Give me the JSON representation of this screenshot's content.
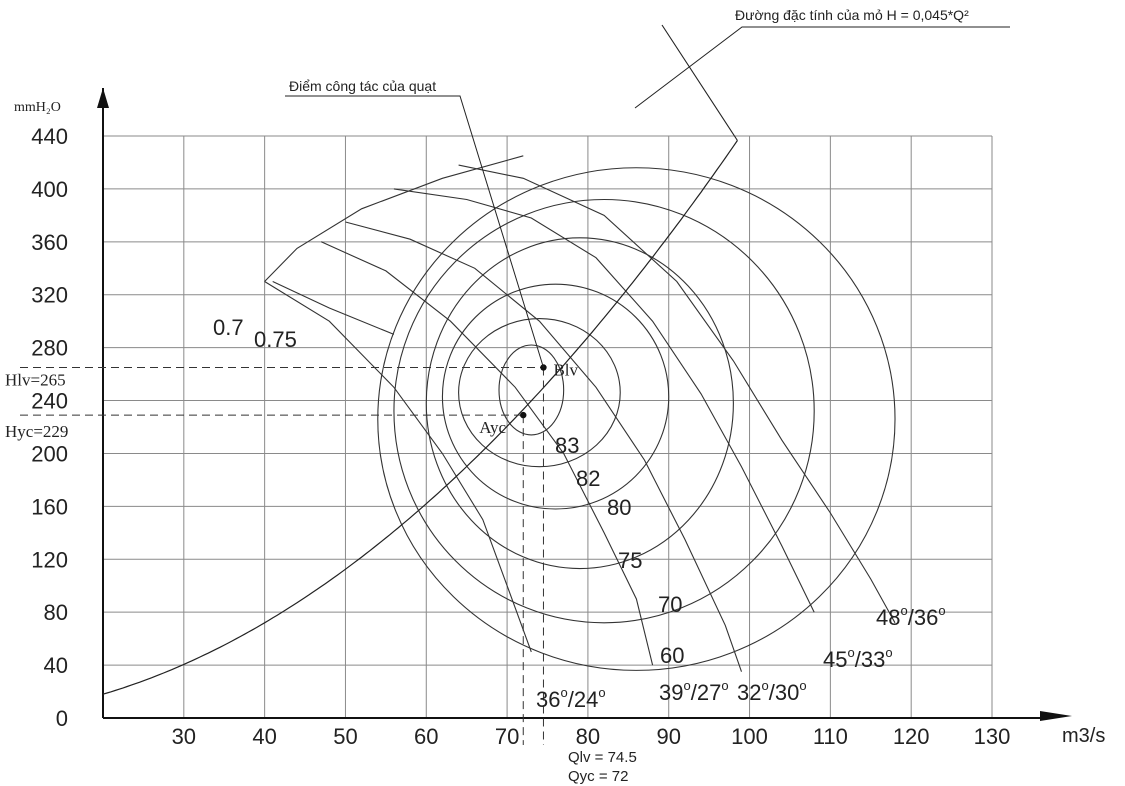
{
  "chart_data": {
    "type": "line",
    "title": "",
    "xlabel": "m3/s",
    "ylabel": "mmH₂O",
    "xlim": [
      20,
      130
    ],
    "ylim": [
      0,
      440
    ],
    "x_ticks": [
      30,
      40,
      50,
      60,
      70,
      80,
      90,
      100,
      110,
      120,
      130
    ],
    "y_ticks": [
      0,
      40,
      80,
      120,
      160,
      200,
      240,
      280,
      320,
      360,
      400,
      440
    ],
    "grid": true,
    "mine_curve": {
      "label": "Đường đặc tính của mỏ H = 0,045*Q²",
      "coefficient": 0.045
    },
    "operating_point": {
      "label": "Điểm công tác của quạt",
      "name": "Blv",
      "x": 74.5,
      "y": 265
    },
    "required_point": {
      "name": "Ayc",
      "x": 72,
      "y": 229
    },
    "axis_callouts": {
      "hlv": "Hlv=265",
      "hyc": "Hyc=229",
      "qlv": "Qlv = 74.5",
      "qyc": "Qyc = 72"
    },
    "blade_angle_curves": [
      {
        "name": "36/24",
        "label_a": "36",
        "label_b": "24",
        "points": [
          [
            40,
            330
          ],
          [
            48,
            300
          ],
          [
            56,
            250
          ],
          [
            62,
            200
          ],
          [
            67,
            150
          ],
          [
            70,
            100
          ],
          [
            73,
            50
          ]
        ]
      },
      {
        "name": "39/27",
        "label_a": "39",
        "label_b": "27",
        "points": [
          [
            47,
            360
          ],
          [
            55,
            338
          ],
          [
            63,
            300
          ],
          [
            71,
            250
          ],
          [
            77,
            200
          ],
          [
            82,
            140
          ],
          [
            86,
            90
          ],
          [
            88,
            40
          ]
        ]
      },
      {
        "name": "32/30",
        "label_a": "32",
        "label_b": "30",
        "points": [
          [
            50,
            375
          ],
          [
            58,
            362
          ],
          [
            66,
            340
          ],
          [
            74,
            300
          ],
          [
            81,
            250
          ],
          [
            87,
            195
          ],
          [
            92,
            135
          ],
          [
            97,
            70
          ],
          [
            99,
            35
          ]
        ]
      },
      {
        "name": "45/33",
        "label_a": "45",
        "label_b": "33",
        "points": [
          [
            56,
            400
          ],
          [
            65,
            392
          ],
          [
            73,
            378
          ],
          [
            81,
            348
          ],
          [
            88,
            300
          ],
          [
            94,
            245
          ],
          [
            99,
            190
          ],
          [
            104,
            130
          ],
          [
            108,
            80
          ]
        ]
      },
      {
        "name": "48/36",
        "label_a": "48",
        "label_b": "36",
        "points": [
          [
            64,
            418
          ],
          [
            72,
            408
          ],
          [
            82,
            380
          ],
          [
            91,
            330
          ],
          [
            98,
            270
          ],
          [
            104,
            210
          ],
          [
            110,
            155
          ],
          [
            115,
            105
          ],
          [
            118,
            72
          ]
        ]
      }
    ],
    "efficiency_contours": [
      {
        "label": "83",
        "cx": 73,
        "cy": 248,
        "rx": 4,
        "ry": 34
      },
      {
        "label": "82",
        "cx": 74,
        "cy": 246,
        "rx": 10,
        "ry": 56
      },
      {
        "label": "80",
        "cx": 76,
        "cy": 243,
        "rx": 14,
        "ry": 85
      },
      {
        "label": "75",
        "cx": 79,
        "cy": 238,
        "rx": 19,
        "ry": 125
      },
      {
        "label": "70",
        "cx": 82,
        "cy": 232,
        "rx": 26,
        "ry": 160
      },
      {
        "label": "60",
        "cx": 86,
        "cy": 226,
        "rx": 32,
        "ry": 190
      }
    ],
    "iso_efficiency_lines": [
      {
        "label": "0.7",
        "points": [
          [
            40,
            330
          ],
          [
            44,
            355
          ],
          [
            52,
            385
          ],
          [
            62,
            408
          ],
          [
            72,
            425
          ]
        ]
      },
      {
        "label": "0.75",
        "points": [
          [
            41,
            330
          ],
          [
            48,
            310
          ],
          [
            56,
            290
          ]
        ]
      }
    ]
  }
}
